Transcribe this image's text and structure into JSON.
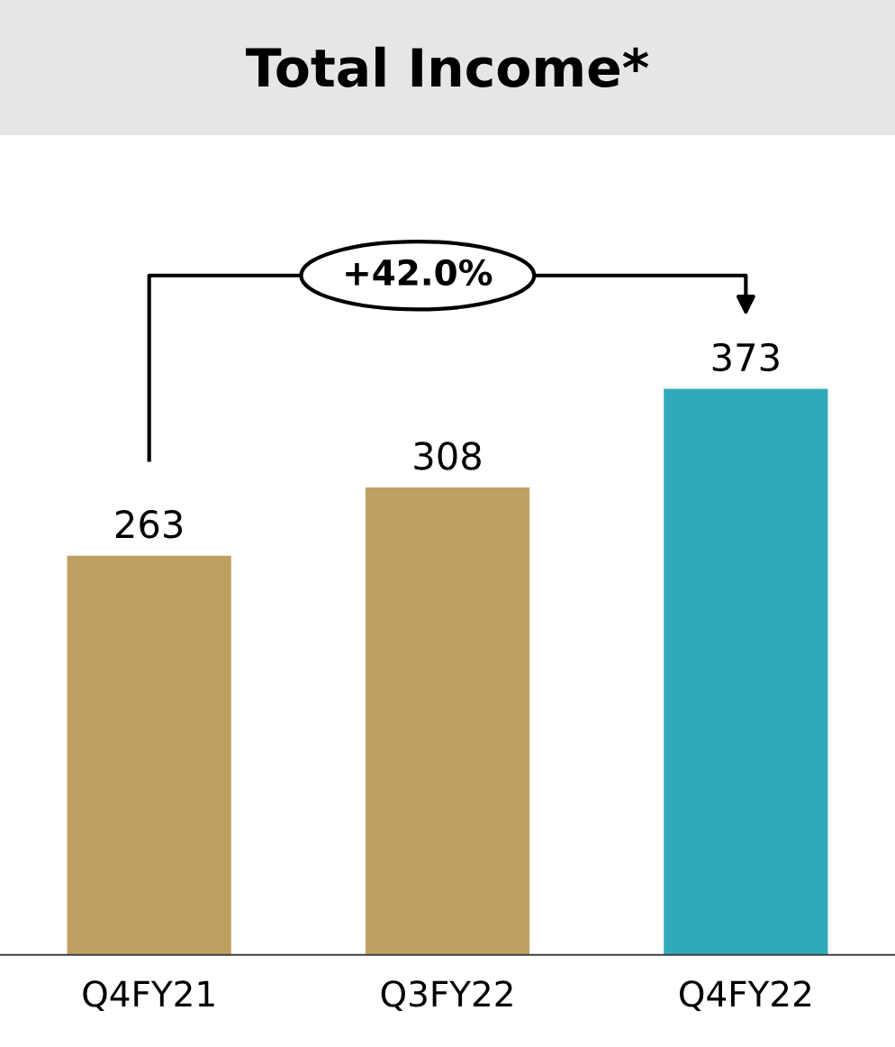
{
  "chart_data": {
    "type": "bar",
    "title": "Total Income*",
    "categories": [
      "Q4FY21",
      "Q3FY22",
      "Q4FY22"
    ],
    "values": [
      263,
      308,
      373
    ],
    "colors": [
      "#c0a062",
      "#c0a062",
      "#30aabb"
    ],
    "data_labels": true,
    "annotations": [
      "+42.0%"
    ]
  }
}
